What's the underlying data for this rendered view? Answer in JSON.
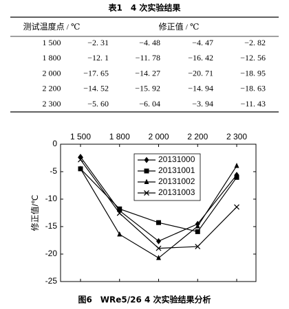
{
  "table_caption": "表1　4 次实验结果",
  "table": {
    "headers": [
      "测试温度点 / ℃",
      "修正值 / ℃"
    ],
    "rows": [
      [
        "1 500",
        "−2. 31",
        "−4. 48",
        "−4. 47",
        "−2. 82"
      ],
      [
        "1 800",
        "−12. 1",
        "−11. 78",
        "−16. 42",
        "−12. 56"
      ],
      [
        "2 000",
        "−17. 65",
        "−14. 27",
        "−20. 71",
        "−18. 95"
      ],
      [
        "2 200",
        "−14. 52",
        "−15. 92",
        "−14. 94",
        "−18. 63"
      ],
      [
        "2 300",
        "−5. 60",
        "−6. 04",
        "−3. 94",
        "−11. 43"
      ]
    ]
  },
  "chart_data": {
    "type": "line",
    "title": "图6　WRe5/26 4 次实验结果分析",
    "y_label": "修正值/℃",
    "categories": [
      "1 500",
      "1 800",
      "2 000",
      "2 200",
      "2 300"
    ],
    "ylim": [
      -25,
      0
    ],
    "yticks": [
      0,
      -5,
      -10,
      -15,
      -20,
      -25
    ],
    "grid": false,
    "legend": "upper right",
    "series": [
      {
        "name": "20131000",
        "color": "#000000",
        "marker": "diamond",
        "values": [
          -2.31,
          -12.1,
          -17.65,
          -14.52,
          -5.6
        ]
      },
      {
        "name": "20131001",
        "color": "#000000",
        "marker": "square",
        "values": [
          -4.48,
          -11.78,
          -14.27,
          -15.92,
          -6.04
        ]
      },
      {
        "name": "20131002",
        "color": "#000000",
        "marker": "triangle",
        "values": [
          -4.47,
          -16.42,
          -20.71,
          -14.94,
          -3.94
        ]
      },
      {
        "name": "20131003",
        "color": "#000000",
        "marker": "x",
        "values": [
          -2.82,
          -12.56,
          -18.95,
          -18.63,
          -11.43
        ]
      }
    ]
  }
}
